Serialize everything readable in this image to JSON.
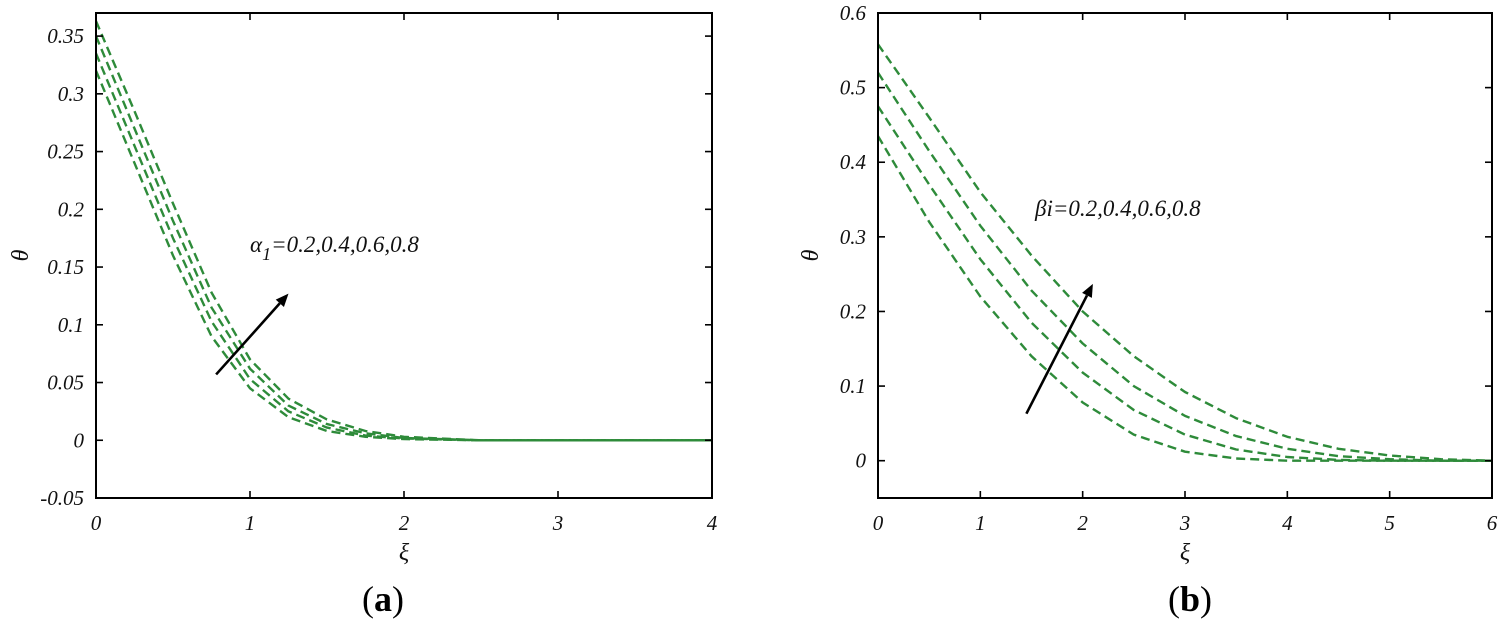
{
  "chart_data": [
    {
      "type": "line",
      "panel_label": "a",
      "xlabel": "ξ",
      "ylabel": "θ",
      "xlim": [
        0,
        4
      ],
      "ylim": [
        -0.05,
        0.37
      ],
      "xticks": [
        0,
        1,
        2,
        3,
        4
      ],
      "xtick_labels": [
        "0",
        "1",
        "2",
        "3",
        "4"
      ],
      "yticks": [
        -0.05,
        0,
        0.05,
        0.1,
        0.15,
        0.2,
        0.25,
        0.3,
        0.35
      ],
      "ytick_labels": [
        "-0.05",
        "0",
        "0.05",
        "0.1",
        "0.15",
        "0.2",
        "0.25",
        "0.3",
        "0.35"
      ],
      "grid": false,
      "line_style": "dashed",
      "line_color": "#2e8b3a",
      "annotation": {
        "text": "=0.2,0.4,0.6,0.8",
        "symbol": "α",
        "subscript": "1"
      },
      "arrow": {
        "from": [
          0.78,
          0.057
        ],
        "to": [
          1.25,
          0.127
        ]
      },
      "series": [
        {
          "x": [
            0,
            0.25,
            0.5,
            0.75,
            1.0,
            1.25,
            1.5,
            1.75,
            2.0,
            2.5,
            3.0,
            3.5,
            4.0
          ],
          "values": [
            0.32,
            0.24,
            0.16,
            0.09,
            0.045,
            0.02,
            0.008,
            0.003,
            0.001,
            0.0,
            0.0,
            0.0,
            0.0
          ]
        },
        {
          "x": [
            0,
            0.25,
            0.5,
            0.75,
            1.0,
            1.25,
            1.5,
            1.75,
            2.0,
            2.5,
            3.0,
            3.5,
            4.0
          ],
          "values": [
            0.335,
            0.255,
            0.175,
            0.103,
            0.053,
            0.025,
            0.011,
            0.004,
            0.0015,
            0.0,
            0.0,
            0.0,
            0.0
          ]
        },
        {
          "x": [
            0,
            0.25,
            0.5,
            0.75,
            1.0,
            1.25,
            1.5,
            1.75,
            2.0,
            2.5,
            3.0,
            3.5,
            4.0
          ],
          "values": [
            0.35,
            0.27,
            0.19,
            0.115,
            0.062,
            0.03,
            0.014,
            0.006,
            0.002,
            0.0,
            0.0,
            0.0,
            0.0
          ]
        },
        {
          "x": [
            0,
            0.25,
            0.5,
            0.75,
            1.0,
            1.25,
            1.5,
            1.75,
            2.0,
            2.5,
            3.0,
            3.5,
            4.0
          ],
          "values": [
            0.363,
            0.285,
            0.205,
            0.128,
            0.07,
            0.036,
            0.018,
            0.008,
            0.003,
            0.0,
            0.0,
            0.0,
            0.0
          ]
        }
      ]
    },
    {
      "type": "line",
      "panel_label": "b",
      "xlabel": "ξ",
      "ylabel": "θ",
      "xlim": [
        0,
        6
      ],
      "ylim": [
        -0.05,
        0.6
      ],
      "xticks": [
        0,
        1,
        2,
        3,
        4,
        5,
        6
      ],
      "xtick_labels": [
        "0",
        "1",
        "2",
        "3",
        "4",
        "5",
        "6"
      ],
      "yticks": [
        0,
        0.1,
        0.2,
        0.3,
        0.4,
        0.5,
        0.6
      ],
      "ytick_labels": [
        "0",
        "0.1",
        "0.2",
        "0.3",
        "0.4",
        "0.5",
        "0.6"
      ],
      "grid": false,
      "line_style": "dashed",
      "line_color": "#2e8b3a",
      "annotation": {
        "text": "βi=0.2,0.4,0.6,0.8"
      },
      "arrow": {
        "from": [
          1.45,
          0.063
        ],
        "to": [
          2.1,
          0.237
        ]
      },
      "series": [
        {
          "x": [
            0,
            0.5,
            1.0,
            1.5,
            2.0,
            2.5,
            3.0,
            3.5,
            4.0,
            4.5,
            5.0,
            5.5,
            6.0
          ],
          "values": [
            0.435,
            0.32,
            0.22,
            0.14,
            0.078,
            0.035,
            0.012,
            0.003,
            0.0,
            0.0,
            0.0,
            0.0,
            0.0
          ]
        },
        {
          "x": [
            0,
            0.5,
            1.0,
            1.5,
            2.0,
            2.5,
            3.0,
            3.5,
            4.0,
            4.5,
            5.0,
            5.5,
            6.0
          ],
          "values": [
            0.475,
            0.37,
            0.27,
            0.185,
            0.118,
            0.068,
            0.035,
            0.015,
            0.005,
            0.001,
            0.0,
            0.0,
            0.0
          ]
        },
        {
          "x": [
            0,
            0.5,
            1.0,
            1.5,
            2.0,
            2.5,
            3.0,
            3.5,
            4.0,
            4.5,
            5.0,
            5.5,
            6.0
          ],
          "values": [
            0.52,
            0.415,
            0.315,
            0.228,
            0.157,
            0.1,
            0.06,
            0.033,
            0.016,
            0.006,
            0.002,
            0.0,
            0.0
          ]
        },
        {
          "x": [
            0,
            0.5,
            1.0,
            1.5,
            2.0,
            2.5,
            3.0,
            3.5,
            4.0,
            4.5,
            5.0,
            5.5,
            6.0
          ],
          "values": [
            0.558,
            0.46,
            0.36,
            0.275,
            0.2,
            0.14,
            0.092,
            0.057,
            0.032,
            0.016,
            0.007,
            0.002,
            0.0
          ]
        }
      ]
    }
  ]
}
